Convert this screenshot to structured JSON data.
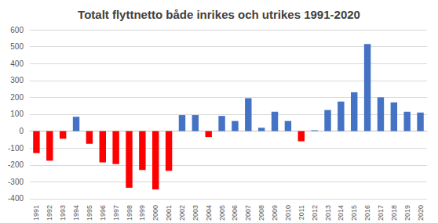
{
  "chart_data": {
    "type": "bar",
    "title": "Totalt flyttnetto både inrikes och utrikes 1991-2020",
    "categories": [
      "1991",
      "1992",
      "1993",
      "1994",
      "1995",
      "1996",
      "1997",
      "1998",
      "1999",
      "2000",
      "2001",
      "2002",
      "2003",
      "2004",
      "2005",
      "2006",
      "2007",
      "2008",
      "2009",
      "2010",
      "2011",
      "2012",
      "2013",
      "2014",
      "2015",
      "2016",
      "2017",
      "2018",
      "2019",
      "2020"
    ],
    "values": [
      -130,
      -175,
      -45,
      85,
      -75,
      -185,
      -195,
      -335,
      -230,
      -345,
      -235,
      95,
      95,
      -35,
      90,
      60,
      195,
      20,
      115,
      60,
      -60,
      5,
      125,
      175,
      230,
      515,
      200,
      170,
      115,
      110
    ],
    "colors": [
      "#ff0000",
      "#ff0000",
      "#ff0000",
      "#4472c4",
      "#ff0000",
      "#ff0000",
      "#ff0000",
      "#ff0000",
      "#ff0000",
      "#ff0000",
      "#ff0000",
      "#4472c4",
      "#4472c4",
      "#ff0000",
      "#4472c4",
      "#4472c4",
      "#4472c4",
      "#4472c4",
      "#4472c4",
      "#4472c4",
      "#ff0000",
      "#4472c4",
      "#4472c4",
      "#4472c4",
      "#4472c4",
      "#4472c4",
      "#4472c4",
      "#4472c4",
      "#4472c4",
      "#4472c4"
    ],
    "ylim": [
      -400,
      600
    ],
    "yticks": [
      -400,
      -300,
      -200,
      -100,
      0,
      100,
      200,
      300,
      400,
      500,
      600
    ],
    "grid": true
  }
}
